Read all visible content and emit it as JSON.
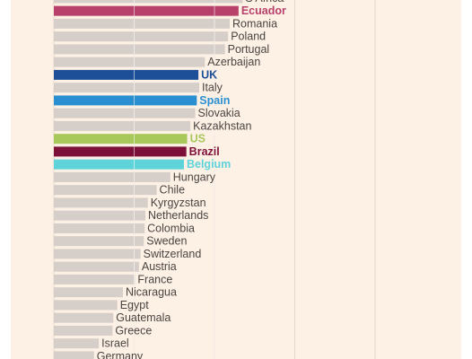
{
  "chart_data": {
    "type": "bar",
    "orientation": "horizontal",
    "title": "",
    "xlabel": "",
    "ylabel": "",
    "xlim": [
      0,
      40
    ],
    "grid": true,
    "legend": "none",
    "colors": {
      "background": "#fdf1e6",
      "default_bar": "#d6cec8",
      "default_label": "#4a4440",
      "gridline": "#e6d6c6"
    },
    "categories": [
      "S Africa",
      "Ecuador",
      "Romania",
      "Poland",
      "Portugal",
      "Azerbaijan",
      "UK",
      "Italy",
      "Spain",
      "Slovakia",
      "Kazakhstan",
      "US",
      "Brazil",
      "Belgium",
      "Hungary",
      "Chile",
      "Kyrgyzstan",
      "Netherlands",
      "Colombia",
      "Sweden",
      "Switzerland",
      "Austria",
      "France",
      "Nicaragua",
      "Egypt",
      "Guatemala",
      "Greece",
      "Israel",
      "Germany"
    ],
    "values": [
      23.5,
      23.0,
      21.9,
      21.7,
      21.3,
      18.8,
      18.0,
      18.1,
      17.8,
      17.6,
      17.0,
      16.6,
      16.5,
      16.2,
      14.5,
      12.8,
      11.7,
      11.4,
      11.3,
      11.2,
      10.8,
      10.6,
      10.1,
      8.6,
      7.9,
      7.4,
      7.3,
      5.6,
      5.0
    ],
    "highlights": {
      "Ecuador": "#b8416b",
      "UK": "#1c4f98",
      "Spain": "#2a8fd0",
      "US": "#a8c85c",
      "Brazil": "#7d1038",
      "Belgium": "#5ed3d9"
    }
  }
}
